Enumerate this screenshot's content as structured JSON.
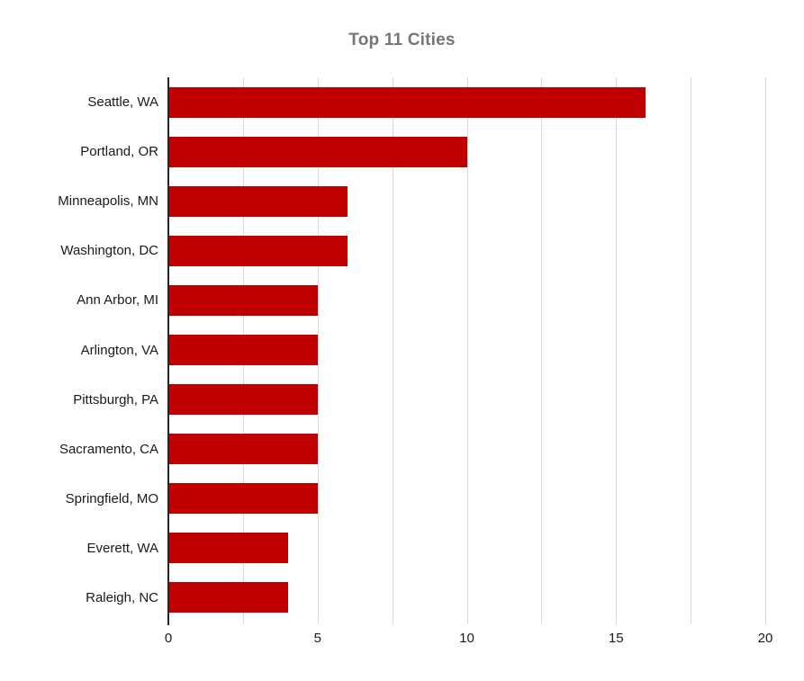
{
  "chart_data": {
    "type": "bar",
    "orientation": "horizontal",
    "title": "Top 11 Cities",
    "categories": [
      "Seattle, WA",
      "Portland, OR",
      "Minneapolis, MN",
      "Washington, DC",
      "Ann Arbor, MI",
      "Arlington, VA",
      "Pittsburgh, PA",
      "Sacramento, CA",
      "Springfield, MO",
      "Everett, WA",
      "Raleigh, NC"
    ],
    "values": [
      16,
      10,
      6,
      6,
      5,
      5,
      5,
      5,
      5,
      4,
      4
    ],
    "xlabel": "",
    "ylabel": "",
    "xlim": [
      0,
      20
    ],
    "x_major_ticks": [
      0,
      5,
      10,
      15,
      20
    ],
    "x_gridlines": [
      2.5,
      5,
      7.5,
      10,
      12.5,
      15,
      17.5,
      20
    ],
    "grid": "vertical",
    "legend": "none",
    "colors": {
      "bar": "#C00000",
      "gridline": "#D9D9D9",
      "axis": "#262626",
      "title": "#767676",
      "tick_label": "#1a1a1a"
    }
  }
}
